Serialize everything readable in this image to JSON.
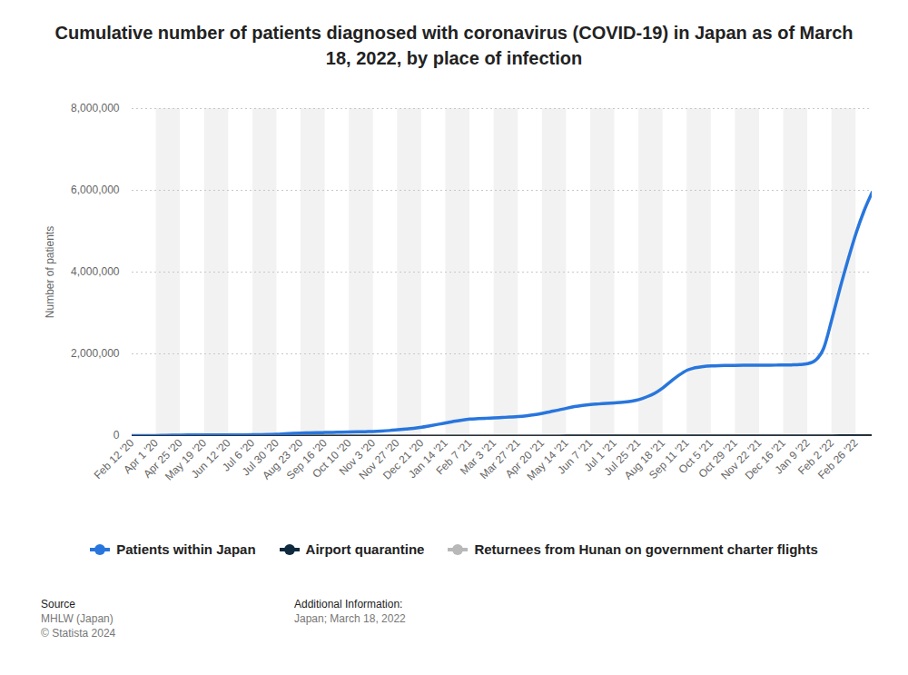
{
  "chart_data": {
    "type": "line",
    "title": "Cumulative number of patients diagnosed with coronavirus (COVID-19) in Japan as of March 18, 2022, by place of infection",
    "y_label": "Number of patients",
    "categories": [
      "Feb 12 '20",
      null,
      null,
      "Apr 1 '20",
      null,
      null,
      "Apr 25 '20",
      null,
      null,
      "May 19 '20",
      null,
      null,
      "Jun 12 '20",
      null,
      null,
      "Jul 6 '20",
      null,
      null,
      "Jul 30 '20",
      null,
      null,
      "Aug 23 '20",
      null,
      null,
      "Sep 16 '20",
      null,
      null,
      "Oct 10 '20",
      null,
      null,
      "Nov 3 '20",
      null,
      null,
      "Nov 27 '20",
      null,
      null,
      "Dec 21 '20",
      null,
      null,
      "Jan 14 '21",
      null,
      null,
      "Feb 7 '21",
      null,
      null,
      "Mar 3 '21",
      null,
      null,
      "Mar 27 '21",
      null,
      null,
      "Apr 20 '21",
      null,
      null,
      "May 14 '21",
      null,
      null,
      "Jun 7 '21",
      null,
      null,
      "Jul 1 '21",
      null,
      null,
      "Jul 25 '21",
      null,
      null,
      "Aug 18 '21",
      null,
      null,
      "Sep 11 '21",
      null,
      null,
      "Oct 5 '21",
      null,
      null,
      "Oct 29 '21",
      null,
      null,
      "Nov 22 '21",
      null,
      null,
      "Dec 16 '21",
      null,
      null,
      "Jan 9 '22",
      null,
      null,
      "Feb 2 '22",
      null,
      null,
      "Feb 26 '22",
      null,
      null
    ],
    "series": [
      {
        "name": "Patients within Japan",
        "color": "#2876dd",
        "values": [
          30,
          200,
          600,
          2000,
          6000,
          10000,
          12500,
          14500,
          15800,
          16300,
          16700,
          17100,
          17500,
          18200,
          19000,
          20000,
          23000,
          28000,
          34000,
          44000,
          53000,
          61000,
          67000,
          72000,
          76000,
          80000,
          84000,
          88000,
          92000,
          97000,
          102000,
          112000,
          125000,
          142000,
          160000,
          180000,
          205000,
          240000,
          275000,
          310000,
          350000,
          380000,
          403000,
          415000,
          425000,
          434000,
          444000,
          454000,
          466000,
          485000,
          510000,
          545000,
          585000,
          625000,
          670000,
          710000,
          740000,
          762000,
          775000,
          787000,
          800000,
          815000,
          840000,
          880000,
          950000,
          1040000,
          1170000,
          1330000,
          1480000,
          1600000,
          1660000,
          1690000,
          1705000,
          1712000,
          1715000,
          1718000,
          1720000,
          1721000,
          1723000,
          1724000,
          1725000,
          1727000,
          1730000,
          1738000,
          1760000,
          1850000,
          2150000,
          2850000,
          3600000,
          4300000,
          4950000,
          5500000,
          5950000
        ]
      },
      {
        "name": "Airport quarantine",
        "color": "#0f2a3f",
        "values": [
          0,
          0,
          0,
          10,
          50,
          100,
          130,
          150,
          160,
          170,
          180,
          190,
          200,
          220,
          240,
          270,
          320,
          380,
          430,
          480,
          530,
          580,
          620,
          660,
          700,
          740,
          780,
          820,
          860,
          900,
          940,
          980,
          1020,
          1060,
          1110,
          1170,
          1250,
          1400,
          1600,
          1800,
          1950,
          2050,
          2120,
          2180,
          2230,
          2280,
          2330,
          2380,
          2430,
          2490,
          2550,
          2620,
          2700,
          2780,
          2860,
          2940,
          3020,
          3100,
          3180,
          3270,
          3360,
          3450,
          3560,
          3680,
          3800,
          3920,
          4030,
          4130,
          4220,
          4290,
          4340,
          4380,
          4410,
          4430,
          4450,
          4470,
          4490,
          4510,
          4540,
          4620,
          4800,
          5100,
          5500,
          6000,
          6600,
          7200,
          7800,
          8300,
          8800,
          9300,
          9800,
          10300,
          10800
        ]
      },
      {
        "name": "Returnees from Hunan on government charter flights",
        "color": "#b8b8b8",
        "values": [
          14,
          14,
          14,
          14,
          14,
          14,
          14,
          14,
          14,
          14,
          14,
          14,
          14,
          14,
          14,
          14,
          14,
          14,
          14,
          14,
          14,
          14,
          14,
          14,
          14,
          14,
          14,
          14,
          14,
          14,
          14,
          14,
          14,
          14,
          14,
          14,
          14,
          14,
          14,
          14,
          14,
          14,
          14,
          14,
          14,
          14,
          14,
          14,
          14,
          14,
          14,
          14,
          14,
          14,
          14,
          14,
          14,
          14,
          14,
          14,
          14,
          14,
          14,
          14,
          14,
          14,
          14,
          14,
          14,
          14,
          14,
          14,
          14,
          14,
          14,
          14,
          14,
          14,
          14,
          14,
          14,
          14,
          14,
          14,
          14,
          14,
          14,
          14,
          14,
          14,
          14,
          14,
          14
        ]
      }
    ],
    "ylim": [
      0,
      8000000
    ],
    "yticks": [
      0,
      {
        "value": 2000000,
        "label": "2,000,000"
      },
      {
        "value": 4000000,
        "label": "4,000,000"
      },
      {
        "value": 6000000,
        "label": "6,000,000"
      },
      {
        "value": 8000000,
        "label": "8,000,000"
      }
    ],
    "grid": true,
    "legend": "bottom",
    "source_label": "Source",
    "source": [
      "MHLW (Japan)",
      "© Statista 2024"
    ],
    "additional_info_label": "Additional Information:",
    "additional_info": "Japan; March 18, 2022"
  }
}
